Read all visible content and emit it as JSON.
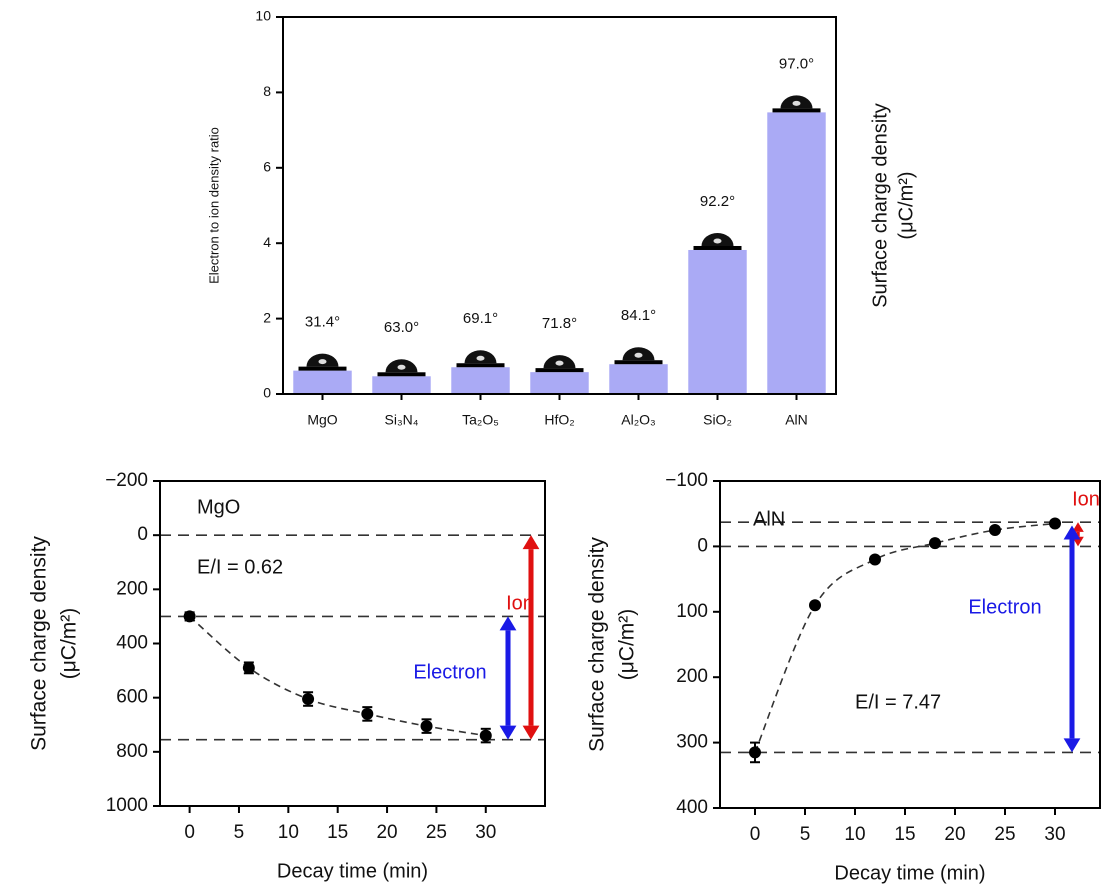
{
  "chart_data": [
    {
      "type": "bar",
      "y_label": "Electron to ion density ratio",
      "y2_label": [
        "Surface charge density",
        "(μC/m²)"
      ],
      "categories": [
        "MgO",
        "Si₃N₄",
        "Ta₂O₅",
        "HfO₂",
        "Al₂O₃",
        "SiO₂",
        "AlN"
      ],
      "values": [
        0.62,
        0.47,
        0.71,
        0.58,
        0.79,
        3.82,
        7.47
      ],
      "annotations": [
        "31.4°",
        "63.0°",
        "69.1°",
        "71.8°",
        "84.1°",
        "92.2°",
        "97.0°"
      ],
      "color": "#aaaaf5",
      "ylim": [
        0,
        10
      ],
      "yticks": [
        0,
        2,
        4,
        6,
        8,
        10
      ]
    },
    {
      "type": "scatter",
      "title": "MgO",
      "annotation": "E/I = 0.62",
      "x_label": "Decay time (min)",
      "y_label": [
        "Surface charge density",
        "(μC/m²)"
      ],
      "x": [
        0,
        6,
        12,
        18,
        24,
        30
      ],
      "values": [
        300,
        490,
        605,
        660,
        705,
        740
      ],
      "errors": [
        15,
        20,
        25,
        25,
        25,
        25
      ],
      "color": "#000000",
      "xlim": [
        -3,
        36
      ],
      "xticks": [
        0,
        5,
        10,
        15,
        20,
        25,
        30
      ],
      "ylim": [
        -200,
        1000
      ],
      "y_inverted": true,
      "yticks": [
        {
          "value": -200,
          "label": "−200"
        },
        0,
        200,
        400,
        600,
        800,
        1000
      ],
      "reference_lines": [
        0,
        300,
        755
      ],
      "arrows": [
        {
          "label": "Ion",
          "color": "#e01010",
          "from": 0,
          "to": 755
        },
        {
          "label": "Electron",
          "color": "#1a1ae6",
          "from": 300,
          "to": 755
        }
      ]
    },
    {
      "type": "scatter",
      "title": "AlN",
      "annotation": "E/I = 7.47",
      "x_label": "Decay time (min)",
      "y_label": [
        "Surface charge density",
        "(μC/m²)"
      ],
      "x": [
        0,
        6,
        12,
        18,
        24,
        30
      ],
      "values": [
        315,
        90,
        20,
        -5,
        -25,
        -35
      ],
      "errors": [
        15,
        0,
        0,
        0,
        0,
        0
      ],
      "color": "#000000",
      "xlim": [
        -3.5,
        34.5
      ],
      "xticks": [
        0,
        5,
        10,
        15,
        20,
        25,
        30
      ],
      "ylim": [
        -100,
        400
      ],
      "y_inverted": true,
      "yticks": [
        {
          "value": -100,
          "label": "−100"
        },
        0,
        100,
        200,
        300,
        400
      ],
      "reference_lines": [
        0,
        315,
        -37
      ],
      "arrows": [
        {
          "label": "Ion",
          "color": "#e01010",
          "from": -37,
          "to": 0
        },
        {
          "label": "Electron",
          "color": "#1a1ae6",
          "from": -32,
          "to": 315
        }
      ]
    }
  ]
}
